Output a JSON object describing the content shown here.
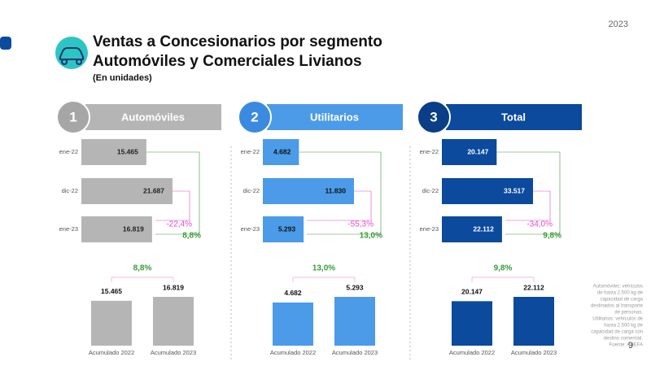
{
  "year": "2023",
  "title": "Ventas a Concesionarios por segmento",
  "subtitle": "Automóviles y Comerciales Livianos",
  "units": "(En unidades)",
  "page_number": "9",
  "note": [
    "Automóviles: vehículos",
    "de hasta 2.500 kg de",
    "capacidad de carga",
    "destinados al transporte",
    "de personas.",
    "Utilitarios: vehículos de",
    "hasta 2.500 kg de",
    "capacidad de carga con",
    "destino comercial.",
    "Fuente: ADEFA"
  ],
  "panels": [
    {
      "number": "1",
      "label": "Automóviles",
      "color": "#b5b5b5",
      "badge_color": "#a6a6a6"
    },
    {
      "number": "2",
      "label": "Utilitarios",
      "color": "#4b9be8",
      "badge_color": "#3a8ae0"
    },
    {
      "number": "3",
      "label": "Total",
      "color": "#0b4a9c",
      "badge_color": "#0a3e86"
    }
  ],
  "chart_data": [
    {
      "type": "bar",
      "orientation": "horizontal",
      "categories": [
        "ene-22",
        "dic-22",
        "ene-23"
      ],
      "values": [
        15465,
        21687,
        16819
      ],
      "value_labels": [
        "15.465",
        "21.687",
        "16.819"
      ],
      "color": "#b5b5b5",
      "label_color": "#222222",
      "annotations": [
        {
          "text": "-22,4%",
          "color": "#e04fc8"
        },
        {
          "text": "8,8%",
          "color": "#3a9a3a"
        }
      ]
    },
    {
      "type": "bar",
      "orientation": "vertical",
      "categories": [
        "Acumulado 2022",
        "Acumulado 2023"
      ],
      "values": [
        15465,
        16819
      ],
      "value_labels": [
        "15.465",
        "16.819"
      ],
      "color": "#b5b5b5",
      "annotations": [
        {
          "text": "8,8%",
          "color": "#3a9a3a"
        }
      ]
    },
    {
      "type": "bar",
      "orientation": "horizontal",
      "categories": [
        "ene-22",
        "dic-22",
        "ene-23"
      ],
      "values": [
        4682,
        11830,
        5293
      ],
      "value_labels": [
        "4.682",
        "11.830",
        "5.293"
      ],
      "color": "#4b9be8",
      "label_color": "#111111",
      "annotations": [
        {
          "text": "-55,3%",
          "color": "#e04fc8"
        },
        {
          "text": "13,0%",
          "color": "#3a9a3a"
        }
      ]
    },
    {
      "type": "bar",
      "orientation": "vertical",
      "categories": [
        "Acumulado 2022",
        "Acumulado 2023"
      ],
      "values": [
        4682,
        5293
      ],
      "value_labels": [
        "4.682",
        "5.293"
      ],
      "color": "#4b9be8",
      "annotations": [
        {
          "text": "13,0%",
          "color": "#3a9a3a"
        }
      ]
    },
    {
      "type": "bar",
      "orientation": "horizontal",
      "categories": [
        "ene-22",
        "dic-22",
        "ene-23"
      ],
      "values": [
        20147,
        33517,
        22112
      ],
      "value_labels": [
        "20.147",
        "33.517",
        "22.112"
      ],
      "color": "#0b4a9c",
      "label_color": "#ffffff",
      "annotations": [
        {
          "text": "-34,0%",
          "color": "#e04fc8"
        },
        {
          "text": "9,8%",
          "color": "#3a9a3a"
        }
      ]
    },
    {
      "type": "bar",
      "orientation": "vertical",
      "categories": [
        "Acumulado 2022",
        "Acumulado 2023"
      ],
      "values": [
        20147,
        22112
      ],
      "value_labels": [
        "20.147",
        "22.112"
      ],
      "color": "#0b4a9c",
      "annotations": [
        {
          "text": "9,8%",
          "color": "#3a9a3a"
        }
      ]
    }
  ]
}
